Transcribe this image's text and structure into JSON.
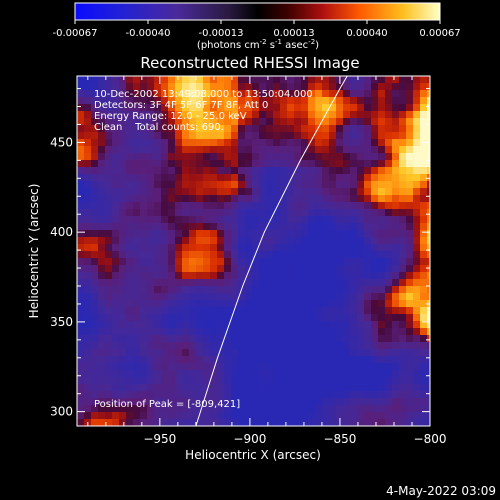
{
  "colorbar": {
    "ticks": [
      "-0.00067",
      "-0.00040",
      "-0.00013",
      "0.00013",
      "0.00040",
      "0.00067"
    ],
    "unit_pre": "(photons cm",
    "unit_sup1": "-2",
    "unit_mid": " s",
    "unit_sup2": "-1",
    "unit_post": " asec",
    "unit_sup3": "-2",
    "unit_end": ")"
  },
  "chart_data": {
    "type": "heatmap",
    "title": "Reconstructed RHESSI Image",
    "xlabel": "Heliocentric X (arcsec)",
    "ylabel": "Heliocentric Y (arcsec)",
    "xlim": [
      -996,
      -800
    ],
    "ylim": [
      292,
      487
    ],
    "xticks": [
      -950,
      -900,
      -850,
      -800
    ],
    "yticks": [
      300,
      350,
      400,
      450
    ],
    "xtick_labels": [
      "−950",
      "−900",
      "−850",
      "−800"
    ],
    "ytick_labels": [
      "300",
      "350",
      "400",
      "450"
    ],
    "color_range": [
      -0.00067,
      0.00067
    ],
    "peak": [
      -809,
      421
    ],
    "annotations": [
      "10-Dec-2002 13:49:08.000 to 13:50:04.000",
      "Detectors: 3F 4F 5F 6F 7F 8F, Att 0",
      "Energy Range: 12.0 - 25.0 keV",
      "Clean    Total counts: 690.",
      "Position of Peak = [-809,421]"
    ],
    "limb_curve": [
      [
        -930,
        292
      ],
      [
        -918,
        330
      ],
      [
        -904,
        370
      ],
      [
        -892,
        400
      ],
      [
        -872,
        440
      ],
      [
        -850,
        480
      ],
      [
        -846,
        487
      ]
    ]
  },
  "footer_date": "4-May-2022 03:09"
}
